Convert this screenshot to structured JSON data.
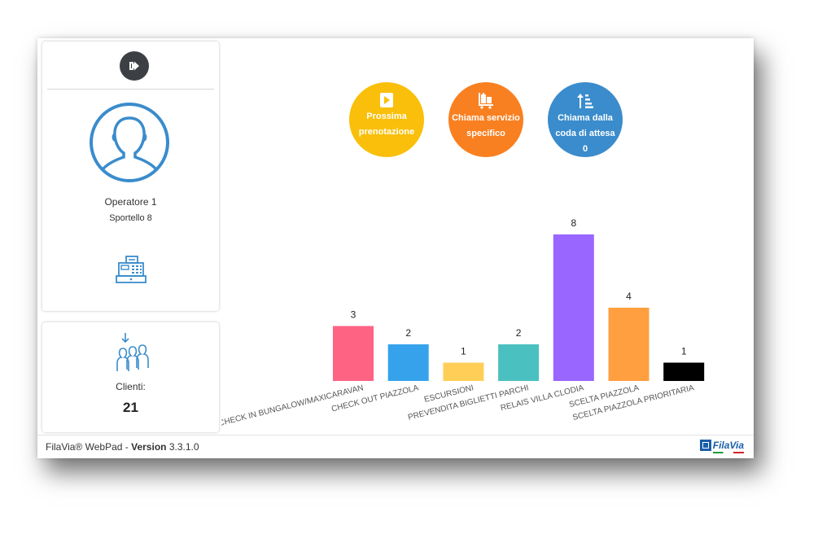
{
  "operator": {
    "name": "Operatore 1",
    "desk": "Sportello 8"
  },
  "clients": {
    "label": "Clienti:",
    "count": "21"
  },
  "actions": {
    "next": {
      "label": "Prossima prenotazione",
      "color": "#f9bf0a",
      "icon": "play-icon"
    },
    "specific": {
      "label": "Chiama servizio specifico",
      "color": "#f98021",
      "icon": "luggage-cart-icon"
    },
    "queue": {
      "label": "Chiama dalla coda di attesa",
      "count": "0",
      "color": "#3a8ccc",
      "icon": "sort-amount-up-icon"
    }
  },
  "footer": {
    "product": "FilaVia® WebPad - ",
    "version_label": "Version",
    "version": " 3.3.1.0",
    "logo_text": "FilaVia"
  },
  "chart_data": {
    "type": "bar",
    "categories": [
      "CHECK IN BUNGALOW/MAXICARAVAN",
      "CHECK OUT PIAZZOLA",
      "ESCURSIONI",
      "PREVENDITA BIGLIETTI PARCHI",
      "RELAIS VILLA CLODIA",
      "SCELTA PIAZZOLA",
      "SCELTA PIAZZOLA PRIORITARIA"
    ],
    "values": [
      3,
      2,
      1,
      2,
      8,
      4,
      1
    ],
    "colors": [
      "#ff6384",
      "#36a2eb",
      "#ffce56",
      "#4bc0c0",
      "#9966ff",
      "#ff9f40",
      "#000000"
    ],
    "ylim": [
      0,
      8
    ],
    "grid": false,
    "data_labels": true
  }
}
